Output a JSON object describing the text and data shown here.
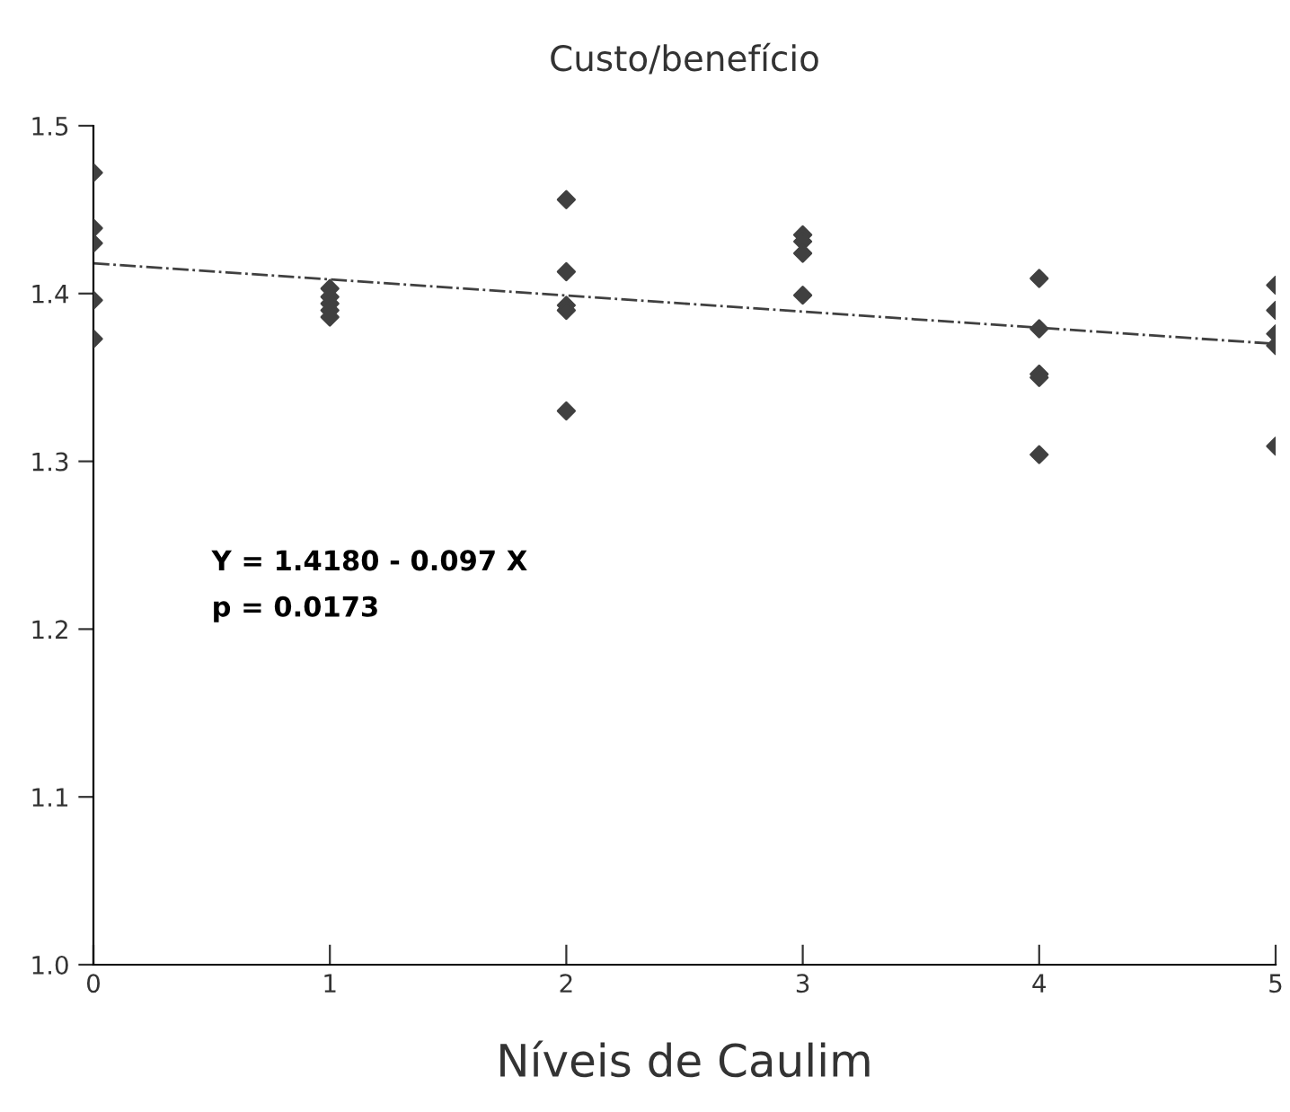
{
  "chart_data": {
    "type": "scatter",
    "title": "Custo/benefício",
    "xlabel": "Níveis de Caulim",
    "series": [
      {
        "color": "#404040",
        "marker": "diamond",
        "x": [
          0,
          0,
          0,
          0,
          0,
          1,
          1,
          1,
          1,
          1,
          2,
          2,
          2,
          2,
          2,
          3,
          3,
          3,
          3,
          4,
          4,
          4,
          4,
          4,
          5,
          5,
          5,
          5,
          5
        ],
        "values": [
          1.472,
          1.439,
          1.43,
          1.396,
          1.373,
          1.403,
          1.398,
          1.394,
          1.39,
          1.386,
          1.456,
          1.413,
          1.393,
          1.39,
          1.33,
          1.435,
          1.431,
          1.424,
          1.399,
          1.409,
          1.379,
          1.352,
          1.35,
          1.304,
          1.405,
          1.39,
          1.376,
          1.369,
          1.309
        ]
      },
      {
        "type": "line",
        "color": "#404040",
        "line_style": "dashdot",
        "marker": "none",
        "x": [
          0,
          5
        ],
        "values": [
          1.418,
          1.37
        ]
      }
    ],
    "annotations": [
      "Y = 1.4180 - 0.097 X",
      "p = 0.0173"
    ],
    "xlim": [
      0,
      5
    ],
    "ylim": [
      1.0,
      1.5
    ],
    "xticks": [
      0,
      1,
      2,
      3,
      4,
      5
    ],
    "yticks": [
      {
        "value": 1.0,
        "label": "1.0"
      },
      1.1,
      1.2,
      1.3,
      1.4,
      1.5
    ],
    "grid": false,
    "legend": false
  }
}
